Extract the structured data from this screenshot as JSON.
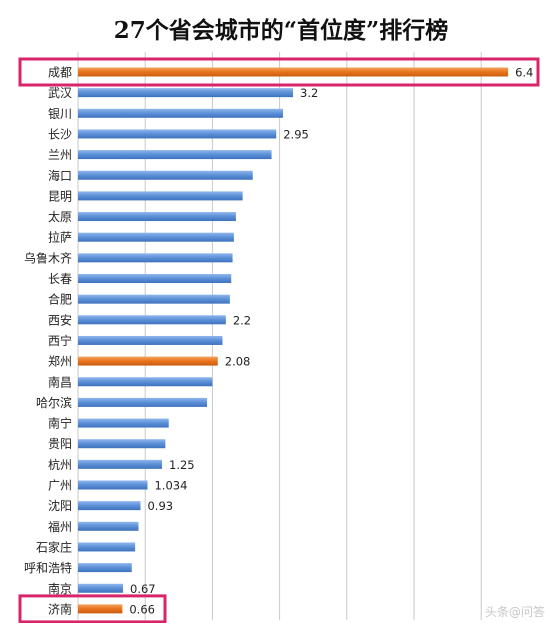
{
  "chart_data": {
    "type": "bar",
    "orientation": "horizontal",
    "title": "27个省会城市的“首位度”排行榜",
    "categories": [
      "成都",
      "武汉",
      "银川",
      "长沙",
      "兰州",
      "海口",
      "昆明",
      "太原",
      "拉萨",
      "乌鲁木齐",
      "长春",
      "合肥",
      "西安",
      "西宁",
      "郑州",
      "南昌",
      "哈尔滨",
      "南宁",
      "贵阳",
      "杭州",
      "广州",
      "沈阳",
      "福州",
      "石家庄",
      "呼和浩特",
      "南京",
      "济南"
    ],
    "values": [
      6.4,
      3.2,
      3.05,
      2.95,
      2.88,
      2.6,
      2.45,
      2.35,
      2.32,
      2.3,
      2.28,
      2.26,
      2.2,
      2.15,
      2.08,
      2.0,
      1.92,
      1.35,
      1.3,
      1.25,
      1.034,
      0.93,
      0.9,
      0.85,
      0.8,
      0.67,
      0.66
    ],
    "data_labels": {
      "成都": "6.4",
      "武汉": "3.2",
      "长沙": "2.95",
      "西安": "2.2",
      "郑州": "2.08",
      "杭州": "1.25",
      "广州": "1.034",
      "沈阳": "0.93",
      "南京": "0.67",
      "济南": "0.66"
    },
    "highlighted": [
      "成都",
      "郑州",
      "济南"
    ],
    "boxed": [
      "成都",
      "济南"
    ],
    "colors": {
      "bar": "#5b8fd6",
      "bar_highlight": "#e8731c",
      "box": "#d8246a",
      "grid": "#c9c9c9"
    },
    "xlim": [
      0,
      6.5
    ],
    "grid": true,
    "legend": "none"
  },
  "watermark": "头条@问答"
}
